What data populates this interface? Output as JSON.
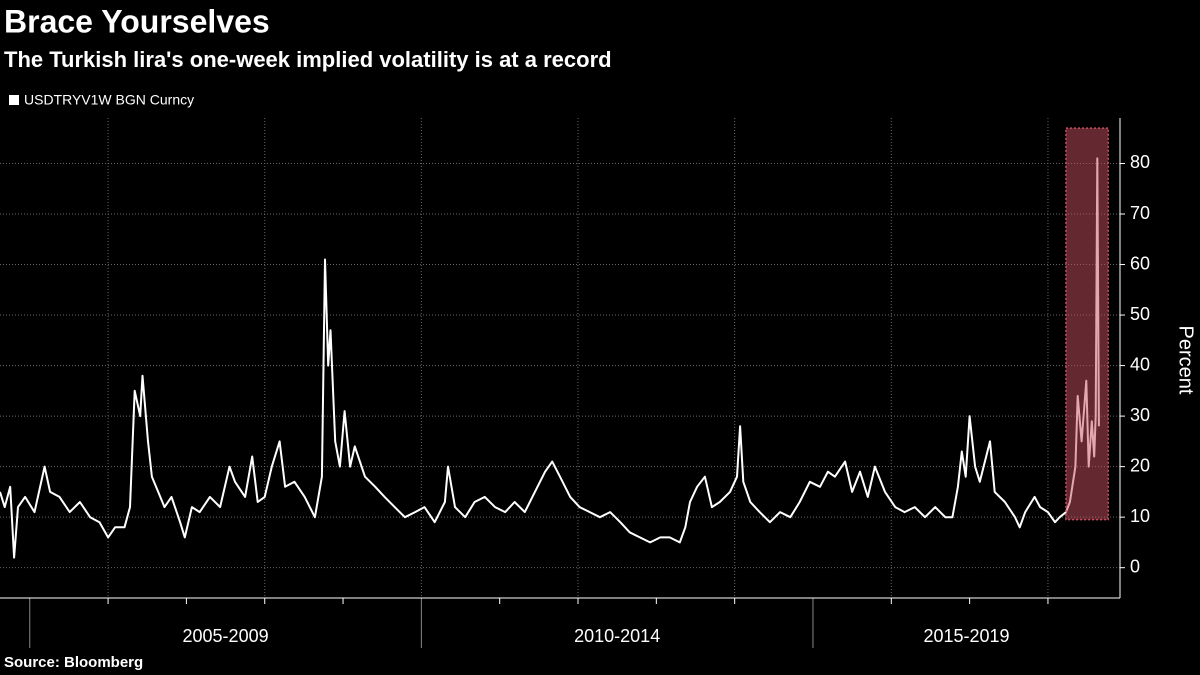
{
  "chart_data": {
    "type": "line",
    "title": "Brace Yourselves",
    "subtitle": "The Turkish lira's one-week implied volatility is at a record",
    "y_label": "Percent",
    "source": "Source: Bloomberg",
    "series": [
      {
        "name": "USDTRYV1W BGN Curncy",
        "color": "#ffffff",
        "x": [
          2004.62,
          2004.68,
          2004.75,
          2004.8,
          2004.85,
          2004.94,
          2005.06,
          2005.19,
          2005.26,
          2005.38,
          2005.51,
          2005.64,
          2005.77,
          2005.89,
          2006.0,
          2006.09,
          2006.21,
          2006.28,
          2006.34,
          2006.41,
          2006.44,
          2006.51,
          2006.56,
          2006.64,
          2006.72,
          2006.81,
          2006.92,
          2006.98,
          2007.07,
          2007.17,
          2007.3,
          2007.43,
          2007.55,
          2007.62,
          2007.75,
          2007.84,
          2007.91,
          2008.0,
          2008.09,
          2008.19,
          2008.26,
          2008.38,
          2008.51,
          2008.64,
          2008.73,
          2008.77,
          2008.81,
          2008.84,
          2008.9,
          2008.96,
          2009.02,
          2009.09,
          2009.15,
          2009.28,
          2009.41,
          2009.53,
          2009.66,
          2009.79,
          2009.92,
          2010.04,
          2010.17,
          2010.3,
          2010.34,
          2010.43,
          2010.56,
          2010.68,
          2010.81,
          2010.94,
          2011.07,
          2011.19,
          2011.32,
          2011.45,
          2011.58,
          2011.67,
          2011.77,
          2011.9,
          2012.02,
          2012.15,
          2012.28,
          2012.41,
          2012.54,
          2012.66,
          2012.79,
          2012.92,
          2013.05,
          2013.17,
          2013.3,
          2013.37,
          2013.43,
          2013.52,
          2013.62,
          2013.71,
          2013.81,
          2013.94,
          2014.03,
          2014.07,
          2014.11,
          2014.2,
          2014.32,
          2014.45,
          2014.58,
          2014.71,
          2014.83,
          2014.96,
          2015.09,
          2015.19,
          2015.28,
          2015.41,
          2015.5,
          2015.6,
          2015.7,
          2015.79,
          2015.92,
          2016.05,
          2016.17,
          2016.3,
          2016.43,
          2016.56,
          2016.69,
          2016.78,
          2016.85,
          2016.9,
          2016.95,
          2017.0,
          2017.07,
          2017.13,
          2017.26,
          2017.32,
          2017.45,
          2017.58,
          2017.64,
          2017.71,
          2017.83,
          2017.9,
          2018.0,
          2018.09,
          2018.15,
          2018.23,
          2018.28,
          2018.35,
          2018.38,
          2018.43,
          2018.49,
          2018.52,
          2018.56,
          2018.59,
          2018.61,
          2018.63,
          2018.65
        ],
        "values": [
          15,
          12,
          16,
          2,
          12,
          14,
          11,
          20,
          15,
          14,
          11,
          13,
          10,
          9,
          6,
          8,
          8,
          12,
          35,
          30,
          38,
          25,
          18,
          15,
          12,
          14,
          9,
          6,
          12,
          11,
          14,
          12,
          20,
          17,
          14,
          22,
          13,
          14,
          20,
          25,
          16,
          17,
          14,
          10,
          18,
          61,
          40,
          47,
          25,
          20,
          31,
          20,
          24,
          18,
          16,
          14,
          12,
          10,
          11,
          12,
          9,
          13,
          20,
          12,
          10,
          13,
          14,
          12,
          11,
          13,
          11,
          15,
          19,
          21,
          18,
          14,
          12,
          11,
          10,
          11,
          9,
          7,
          6,
          5,
          6,
          6,
          5,
          8,
          13,
          16,
          18,
          12,
          13,
          15,
          18,
          28,
          17,
          13,
          11,
          9,
          11,
          10,
          13,
          17,
          16,
          19,
          18,
          21,
          15,
          19,
          14,
          20,
          15,
          12,
          11,
          12,
          10,
          12,
          10,
          10,
          16,
          23,
          18,
          30,
          20,
          17,
          25,
          15,
          13,
          10,
          8,
          11,
          14,
          12,
          11,
          9,
          10,
          11,
          13,
          20,
          34,
          25,
          37,
          20,
          29,
          22,
          30,
          81,
          28
        ]
      }
    ],
    "xlim": [
      2004.62,
      2018.92
    ],
    "xticks": [
      2005,
      2006,
      2007,
      2008,
      2009,
      2010,
      2011,
      2012,
      2013,
      2014,
      2015,
      2016,
      2017,
      2018
    ],
    "x_groups": [
      {
        "label": "2005-2009",
        "start": 2005,
        "end": 2010
      },
      {
        "label": "2010-2014",
        "start": 2010,
        "end": 2015
      },
      {
        "label": "2015-2019",
        "start": 2015,
        "end": 2020
      }
    ],
    "ylim": [
      -6,
      89
    ],
    "yticks": [
      0,
      10,
      20,
      30,
      40,
      50,
      60,
      70,
      80
    ],
    "grid": true,
    "highlight": {
      "x": [
        2018.23,
        2018.77
      ],
      "y": [
        9.5,
        87
      ],
      "color": "#c8505f"
    }
  }
}
